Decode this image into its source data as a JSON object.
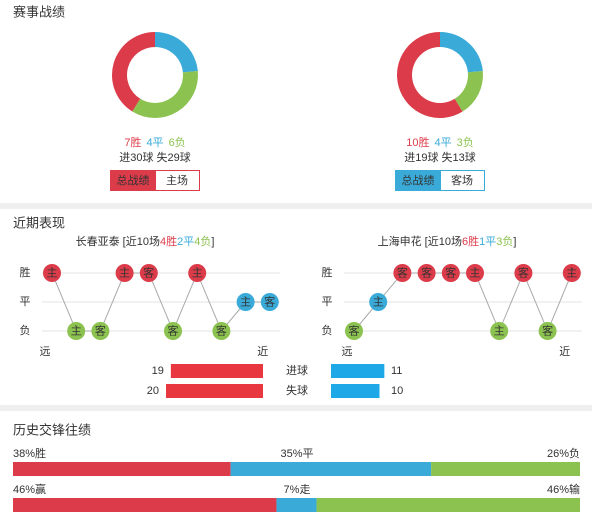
{
  "colors": {
    "win": "#dc3c4a",
    "draw": "#3aabd9",
    "loss": "#8cc24f"
  },
  "record": {
    "title": "赛事战绩",
    "teams": [
      {
        "type": "donut",
        "values": [
          7,
          4,
          6
        ],
        "value_labels": [
          "7胜",
          "4平",
          "6负"
        ],
        "goals": "进30球 失29球",
        "tabs": [
          "总战绩",
          "主场"
        ],
        "tab_color": "#dc3c4a"
      },
      {
        "type": "donut",
        "values": [
          10,
          4,
          3
        ],
        "value_labels": [
          "10胜",
          "4平",
          "3负"
        ],
        "goals": "进19球 失13球",
        "tabs": [
          "总战绩",
          "客场"
        ],
        "tab_color": "#3aabd9"
      }
    ]
  },
  "recent": {
    "title": "近期表现",
    "levels": [
      {
        "value": 1,
        "label": "胜"
      },
      {
        "value": 0,
        "label": "平"
      },
      {
        "value": -1,
        "label": "负"
      }
    ],
    "far": "远",
    "near": "近",
    "teams": [
      {
        "title_parts": [
          "长春亚泰 [近10场",
          "4胜",
          "2平",
          "4负",
          "]"
        ],
        "venues": [
          "主",
          "主",
          "客",
          "主",
          "客",
          "客",
          "主",
          "客",
          "主",
          "客"
        ],
        "results": [
          1,
          -1,
          -1,
          1,
          1,
          -1,
          1,
          -1,
          0,
          0
        ],
        "goals": [
          19,
          20
        ]
      },
      {
        "title_parts": [
          "上海申花 [近10场",
          "6胜",
          "1平",
          "3负",
          "]"
        ],
        "venues": [
          "客",
          "主",
          "客",
          "客",
          "客",
          "主",
          "主",
          "客",
          "客",
          "主"
        ],
        "results": [
          -1,
          0,
          1,
          1,
          1,
          1,
          -1,
          1,
          -1,
          1
        ],
        "goals": [
          11,
          10
        ]
      }
    ],
    "goal_labels": [
      "进球",
      "失球"
    ]
  },
  "history": {
    "title": "历史交锋往绩",
    "rows": [
      {
        "values": [
          38,
          35,
          26
        ],
        "value_labels": [
          "38%胜",
          "35%平",
          "26%负"
        ]
      },
      {
        "values": [
          46,
          7,
          46
        ],
        "value_labels": [
          "46%赢",
          "7%走",
          "46%输"
        ]
      }
    ]
  }
}
